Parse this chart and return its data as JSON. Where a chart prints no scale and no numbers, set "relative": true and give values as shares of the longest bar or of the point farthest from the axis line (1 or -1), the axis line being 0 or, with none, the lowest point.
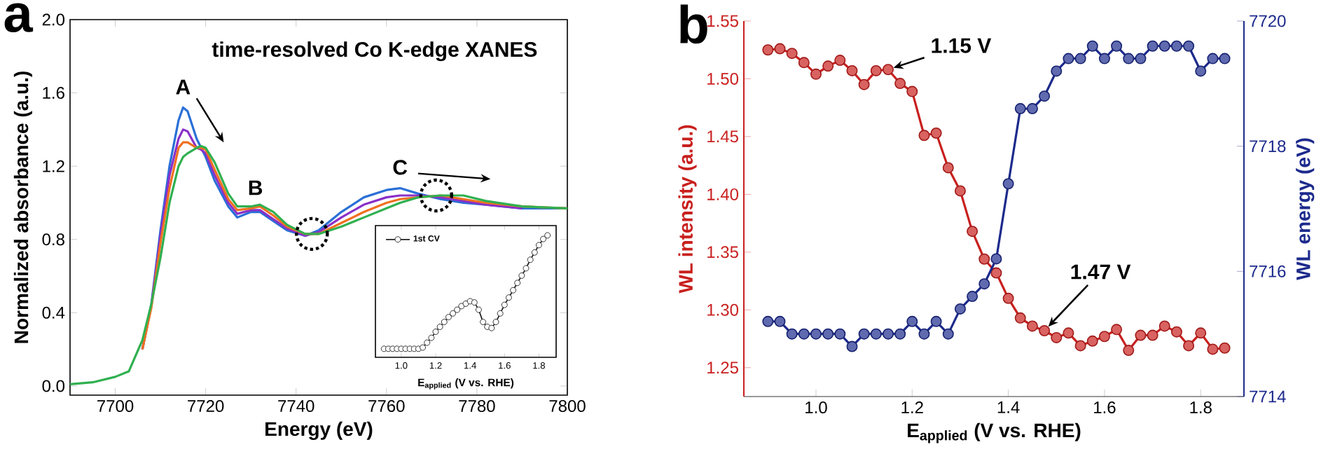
{
  "chart_data": [
    {
      "type": "line",
      "title": "time-resolved Co K-edge XANES",
      "xlabel": "Energy (eV)",
      "ylabel": "Normalized absorbance (a.u.)",
      "x": [
        7690,
        7695,
        7700,
        7703,
        7706,
        7708,
        7710,
        7712,
        7714,
        7715,
        7716,
        7718,
        7719,
        7720,
        7722,
        7725,
        7727,
        7730,
        7732,
        7735,
        7738,
        7742,
        7745,
        7750,
        7755,
        7760,
        7763,
        7767,
        7772,
        7777,
        7782,
        7790,
        7800
      ],
      "series": [
        {
          "color": "#2a6fd6",
          "values": [
            null,
            null,
            null,
            null,
            0.2,
            0.45,
            0.85,
            1.2,
            1.45,
            1.52,
            1.5,
            1.35,
            1.3,
            1.25,
            1.12,
            0.98,
            0.92,
            0.95,
            0.95,
            0.9,
            0.85,
            0.82,
            0.85,
            0.95,
            1.03,
            1.07,
            1.08,
            1.05,
            1.02,
            1.0,
            0.99,
            0.97,
            0.97
          ]
        },
        {
          "color": "#8a30c8",
          "values": [
            null,
            null,
            null,
            null,
            0.2,
            0.44,
            0.82,
            1.15,
            1.35,
            1.4,
            1.39,
            1.3,
            1.29,
            1.27,
            1.15,
            1.0,
            0.94,
            0.96,
            0.96,
            0.91,
            0.86,
            0.82,
            0.84,
            0.92,
            0.99,
            1.03,
            1.04,
            1.04,
            1.03,
            1.01,
            0.99,
            0.97,
            null
          ]
        },
        {
          "color": "#f07020",
          "values": [
            null,
            null,
            null,
            null,
            0.2,
            0.43,
            0.78,
            1.08,
            1.3,
            1.33,
            1.33,
            1.3,
            1.3,
            1.29,
            1.18,
            1.02,
            0.96,
            0.97,
            0.98,
            0.93,
            0.87,
            0.83,
            0.83,
            0.89,
            0.95,
            1.0,
            1.02,
            1.03,
            1.04,
            1.02,
            1.0,
            0.98,
            0.97
          ]
        },
        {
          "color": "#30b050",
          "values": [
            0.01,
            0.02,
            0.05,
            0.08,
            0.25,
            0.45,
            0.7,
            1.0,
            1.2,
            1.25,
            1.27,
            1.3,
            1.31,
            1.3,
            1.22,
            1.05,
            0.98,
            0.98,
            0.99,
            0.95,
            0.88,
            0.83,
            0.83,
            0.87,
            0.92,
            0.97,
            1.0,
            1.03,
            1.04,
            1.04,
            1.01,
            0.98,
            0.97
          ]
        }
      ],
      "xlim": [
        7690,
        7800
      ],
      "ylim": [
        -0.05,
        2.0
      ],
      "xticks": [
        7700,
        7720,
        7740,
        7760,
        7780,
        7800
      ],
      "yticks": [
        {
          "value": 0.0,
          "label": "0.0"
        },
        0.4,
        0.8,
        1.2,
        1.6,
        {
          "value": 2.0,
          "label": "2.0"
        }
      ],
      "annotations": [
        "a",
        {
          "text": "A",
          "x": 7715,
          "y": 1.52
        },
        {
          "text": "B",
          "x": 7731,
          "y": 0.97
        },
        {
          "text": "C",
          "x": 7763,
          "y": 1.08
        }
      ]
    },
    {
      "type": "line",
      "xlabel": "E$_{applied}$ (V vs. RHE)",
      "relative": true,
      "marker": "circle",
      "legend": "top left",
      "x": [
        0.9,
        0.925,
        0.95,
        0.975,
        1.0,
        1.025,
        1.05,
        1.075,
        1.1,
        1.125,
        1.15,
        1.175,
        1.2,
        1.225,
        1.25,
        1.275,
        1.3,
        1.325,
        1.35,
        1.375,
        1.4,
        1.425,
        1.45,
        1.475,
        1.5,
        1.525,
        1.55,
        1.575,
        1.6,
        1.625,
        1.65,
        1.675,
        1.7,
        1.725,
        1.75,
        1.775,
        1.8,
        1.825,
        1.85
      ],
      "series": [
        {
          "name": "1st CV",
          "color": "#222222",
          "values": [
            0.07,
            0.07,
            0.07,
            0.07,
            0.07,
            0.07,
            0.07,
            0.07,
            0.07,
            0.08,
            0.12,
            0.16,
            0.21,
            0.25,
            0.29,
            0.33,
            0.36,
            0.39,
            0.42,
            0.44,
            0.46,
            0.45,
            0.39,
            0.29,
            0.25,
            0.24,
            0.29,
            0.36,
            0.43,
            0.49,
            0.55,
            0.61,
            0.67,
            0.73,
            0.8,
            0.86,
            0.92,
            0.97,
            1.0
          ]
        }
      ],
      "xlim": [
        0.85,
        1.9
      ],
      "xticks": [
        {
          "value": 1.0,
          "label": "1.0"
        },
        1.2,
        1.4,
        1.6,
        1.8
      ]
    },
    {
      "type": "line",
      "xlabel": "E$_{applied}$ (V vs. RHE)",
      "ylabel": "WL intensity (a.u.)",
      "y2label": "WL energy (eV)",
      "marker": "circle",
      "x": [
        0.9,
        0.925,
        0.95,
        0.975,
        1.0,
        1.025,
        1.05,
        1.075,
        1.1,
        1.125,
        1.15,
        1.175,
        1.2,
        1.225,
        1.25,
        1.275,
        1.3,
        1.325,
        1.35,
        1.375,
        1.4,
        1.425,
        1.45,
        1.475,
        1.5,
        1.525,
        1.55,
        1.575,
        1.6,
        1.625,
        1.65,
        1.675,
        1.7,
        1.725,
        1.75,
        1.775,
        1.8,
        1.825,
        1.85
      ],
      "series": [
        {
          "color": "#c8201e",
          "values": [
            1.525,
            1.526,
            1.522,
            1.514,
            1.504,
            1.511,
            1.516,
            1.507,
            1.495,
            1.507,
            1.508,
            1.496,
            1.489,
            1.451,
            1.453,
            1.423,
            1.403,
            1.368,
            1.344,
            1.332,
            1.31,
            1.293,
            1.286,
            1.282,
            1.276,
            1.28,
            1.269,
            1.273,
            1.277,
            1.283,
            1.265,
            1.278,
            1.278,
            1.286,
            1.281,
            1.269,
            1.28,
            1.266,
            1.267
          ]
        },
        {
          "color": "#1c2a8c",
          "axis": "y2",
          "values": [
            7715.2,
            7715.2,
            7715.0,
            7715.0,
            7715.0,
            7715.0,
            7715.0,
            7714.8,
            7715.0,
            7715.0,
            7715.0,
            7715.0,
            7715.2,
            7715.0,
            7715.2,
            7715.0,
            7715.4,
            7715.6,
            7715.8,
            7716.2,
            7717.4,
            7718.6,
            7718.6,
            7718.8,
            7719.2,
            7719.4,
            7719.4,
            7719.6,
            7719.4,
            7719.6,
            7719.4,
            7719.4,
            7719.6,
            7719.6,
            7719.6,
            7719.6,
            7719.2,
            7719.4,
            7719.4
          ]
        }
      ],
      "xlim": [
        0.85,
        1.89
      ],
      "ylim": [
        1.225,
        1.55
      ],
      "y2lim": [
        7714,
        7720
      ],
      "xticks": [
        {
          "value": 1.0,
          "label": "1.0"
        },
        1.2,
        1.4,
        1.6,
        1.8
      ],
      "yticks": [
        1.25,
        {
          "value": 1.3,
          "label": "1.30"
        },
        1.35,
        {
          "value": 1.4,
          "label": "1.40"
        },
        1.45,
        {
          "value": 1.5,
          "label": "1.50"
        },
        1.55
      ],
      "y2ticks": [
        7714,
        7716,
        7718,
        7720
      ],
      "annotations": [
        "b",
        {
          "text": "1.15 V",
          "x": 1.15,
          "y": 1.508
        },
        {
          "text": "1.47 V",
          "x": 1.475,
          "y": 1.282
        }
      ]
    }
  ]
}
